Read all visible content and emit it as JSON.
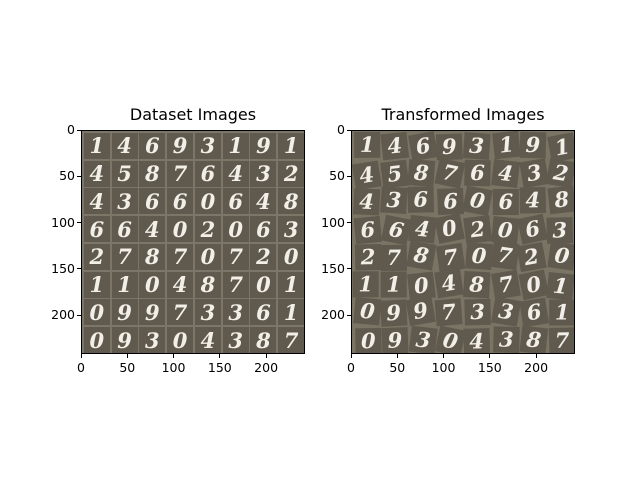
{
  "chart_data": [
    {
      "type": "image",
      "title": "Dataset Images",
      "xticks": [
        "0",
        "50",
        "100",
        "150",
        "200"
      ],
      "yticks": [
        "0",
        "50",
        "100",
        "150",
        "200"
      ],
      "xlim": [
        0,
        242
      ],
      "ylim": [
        242,
        0
      ],
      "digits": [
        [
          "1",
          "4",
          "6",
          "9",
          "3",
          "1",
          "9",
          "1"
        ],
        [
          "4",
          "5",
          "8",
          "7",
          "6",
          "4",
          "3",
          "2"
        ],
        [
          "4",
          "3",
          "6",
          "6",
          "0",
          "6",
          "4",
          "8"
        ],
        [
          "6",
          "6",
          "4",
          "0",
          "2",
          "0",
          "6",
          "3"
        ],
        [
          "2",
          "7",
          "8",
          "7",
          "0",
          "7",
          "2",
          "0"
        ],
        [
          "1",
          "1",
          "0",
          "4",
          "8",
          "7",
          "0",
          "1"
        ],
        [
          "0",
          "9",
          "9",
          "7",
          "3",
          "3",
          "6",
          "1"
        ],
        [
          "0",
          "9",
          "3",
          "0",
          "4",
          "3",
          "8",
          "7"
        ]
      ],
      "colors": {
        "cell": "#5f5a4d",
        "border": "#7b7668"
      }
    },
    {
      "type": "image",
      "title": "Transformed Images",
      "xticks": [
        "0",
        "50",
        "100",
        "150",
        "200"
      ],
      "yticks": [
        "0",
        "50",
        "100",
        "150",
        "200"
      ],
      "xlim": [
        0,
        242
      ],
      "ylim": [
        242,
        0
      ],
      "digits": [
        [
          "1",
          "4",
          "6",
          "9",
          "3",
          "1",
          "9",
          "1"
        ],
        [
          "4",
          "5",
          "8",
          "7",
          "6",
          "4",
          "3",
          "2"
        ],
        [
          "4",
          "3",
          "6",
          "6",
          "0",
          "6",
          "4",
          "8"
        ],
        [
          "6",
          "6",
          "4",
          "0",
          "2",
          "0",
          "6",
          "3"
        ],
        [
          "2",
          "7",
          "8",
          "7",
          "0",
          "7",
          "2",
          "0"
        ],
        [
          "1",
          "1",
          "0",
          "4",
          "8",
          "7",
          "0",
          "1"
        ],
        [
          "0",
          "9",
          "9",
          "7",
          "3",
          "3",
          "6",
          "1"
        ],
        [
          "0",
          "9",
          "3",
          "0",
          "4",
          "3",
          "8",
          "7"
        ]
      ],
      "colors": {
        "cell": "#5f5a4d",
        "border": "#7a7465"
      }
    }
  ]
}
